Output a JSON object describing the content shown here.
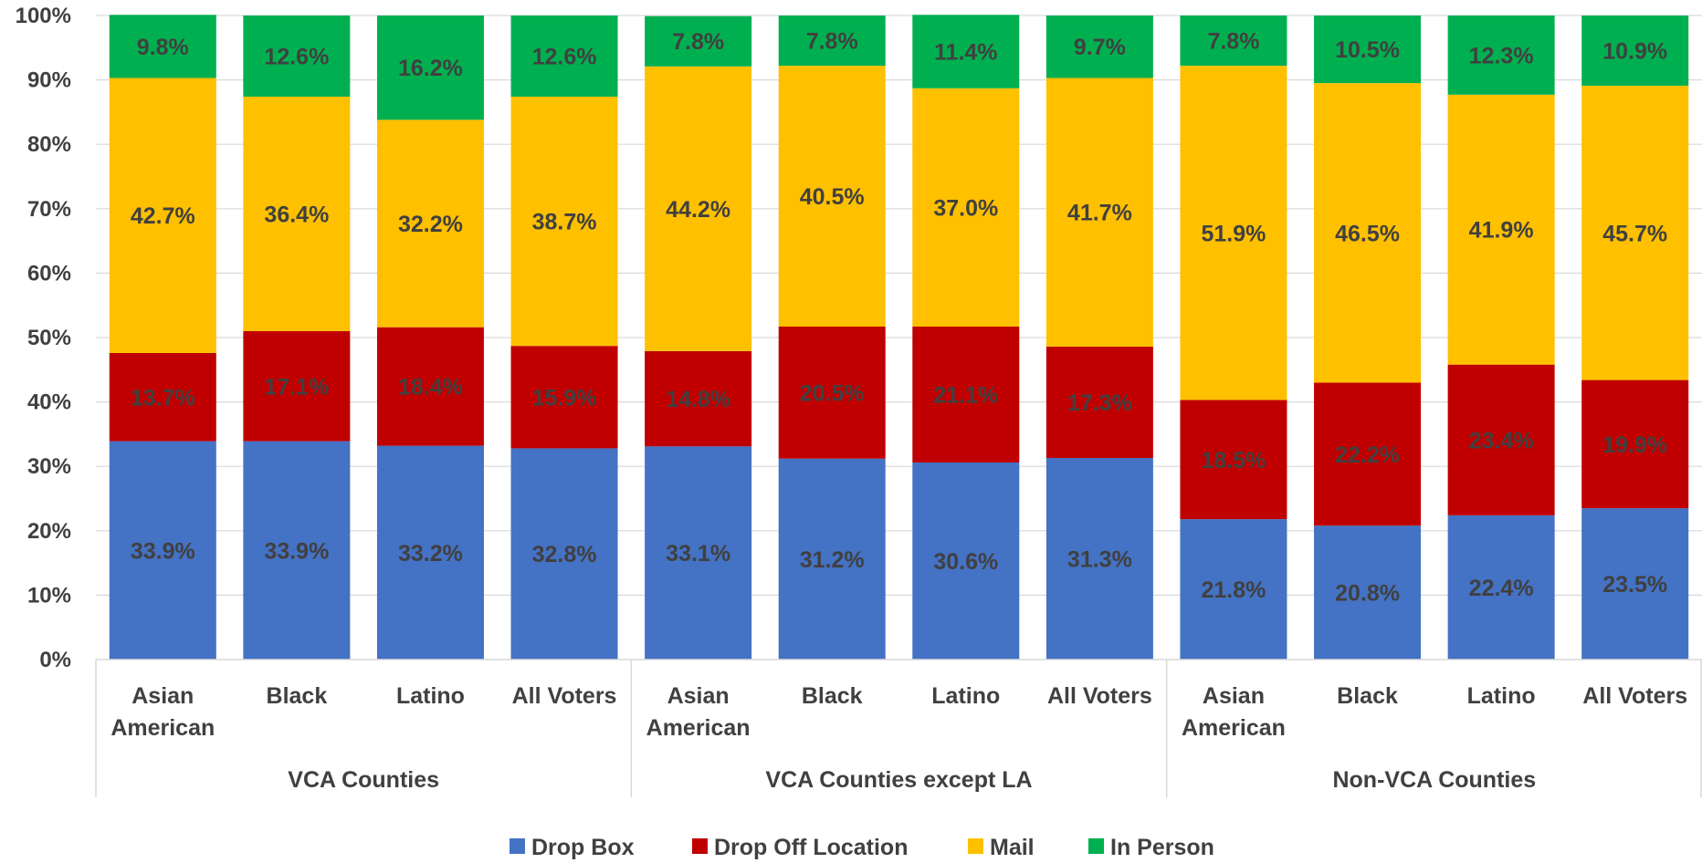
{
  "chart_data": {
    "type": "bar",
    "stacked": true,
    "percent_stacked": true,
    "title": "",
    "xlabel": "",
    "ylabel": "",
    "ylim": [
      0,
      100
    ],
    "y_ticks": [
      "0%",
      "10%",
      "20%",
      "30%",
      "40%",
      "50%",
      "60%",
      "70%",
      "80%",
      "90%",
      "100%"
    ],
    "grid": true,
    "legend_position": "bottom",
    "groups": [
      {
        "name": "VCA Counties",
        "categories": [
          "Asian American",
          "Black",
          "Latino",
          "All Voters"
        ]
      },
      {
        "name": "VCA Counties except LA",
        "categories": [
          "Asian American",
          "Black",
          "Latino",
          "All Voters"
        ]
      },
      {
        "name": "Non-VCA Counties",
        "categories": [
          "Asian American",
          "Black",
          "Latino",
          "All Voters"
        ]
      }
    ],
    "series": [
      {
        "name": "Drop Box",
        "color": "#4472C4",
        "values": [
          33.9,
          33.9,
          33.2,
          32.8,
          33.1,
          31.2,
          30.6,
          31.3,
          21.8,
          20.8,
          22.4,
          23.5
        ],
        "labels": [
          "33.9%",
          "33.9%",
          "33.2%",
          "32.8%",
          "33.1%",
          "31.2%",
          "30.6%",
          "31.3%",
          "21.8%",
          "20.8%",
          "22.4%",
          "23.5%"
        ]
      },
      {
        "name": "Drop Off Location",
        "color": "#C00000",
        "values": [
          13.7,
          17.1,
          18.4,
          15.9,
          14.8,
          20.5,
          21.1,
          17.3,
          18.5,
          22.2,
          23.4,
          19.9
        ],
        "labels": [
          "13.7%",
          "17.1%",
          "18.4%",
          "15.9%",
          "14.8%",
          "20.5%",
          "21.1%",
          "17.3%",
          "18.5%",
          "22.2%",
          "23.4%",
          "19.9%"
        ]
      },
      {
        "name": "Mail",
        "color": "#FFC000",
        "values": [
          42.7,
          36.4,
          32.2,
          38.7,
          44.2,
          40.5,
          37.0,
          41.7,
          51.9,
          46.5,
          41.9,
          45.7
        ],
        "labels": [
          "42.7%",
          "36.4%",
          "32.2%",
          "38.7%",
          "44.2%",
          "40.5%",
          "37.0%",
          "41.7%",
          "51.9%",
          "46.5%",
          "41.9%",
          "45.7%"
        ]
      },
      {
        "name": "In Person",
        "color": "#00B050",
        "values": [
          9.8,
          12.6,
          16.2,
          12.6,
          7.8,
          7.8,
          11.4,
          9.7,
          7.8,
          10.5,
          12.3,
          10.9
        ],
        "labels": [
          "9.8%",
          "12.6%",
          "16.2%",
          "12.6%",
          "7.8%",
          "7.8%",
          "11.4%",
          "9.7%",
          "7.8%",
          "10.5%",
          "12.3%",
          "10.9%"
        ]
      }
    ]
  }
}
